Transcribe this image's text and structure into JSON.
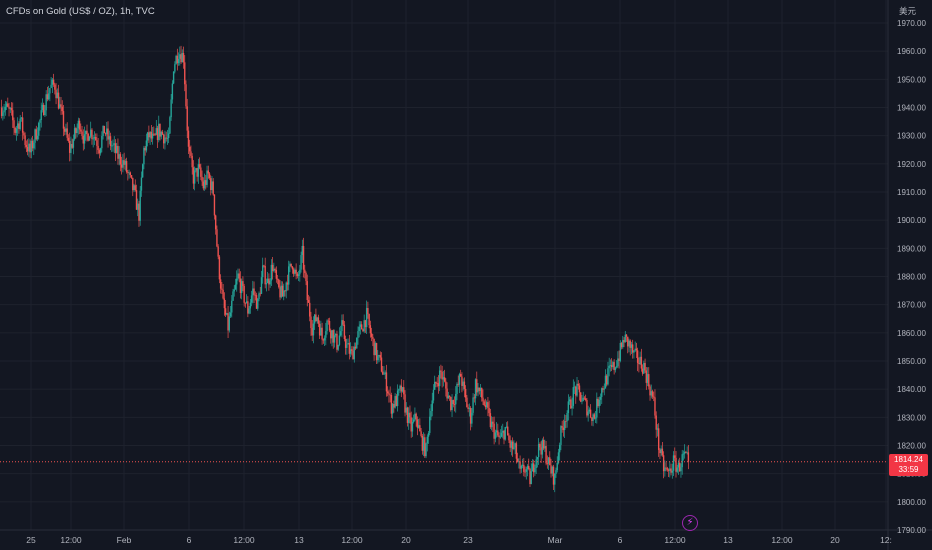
{
  "header": {
    "title": "CFDs on Gold (US$ / OZ), 1h, TVC"
  },
  "price_axis": {
    "currency": "美元"
  },
  "last_price": {
    "value": "1814.24",
    "countdown": "33:59"
  },
  "colors": {
    "background": "#131722",
    "grid": "#1e222d",
    "up": "#26a69a",
    "down": "#ef5350",
    "axis_text": "#b2b5be",
    "price_label": "#f23645"
  },
  "icons": {
    "replay": "lightning-icon"
  },
  "chart_data": {
    "type": "candlestick",
    "title": "CFDs on Gold (US$ / OZ), 1h, TVC",
    "xlabel": "",
    "ylabel": "",
    "ylim": [
      1790,
      1975
    ],
    "y_ticks": [
      1790,
      1800,
      1810,
      1820,
      1830,
      1840,
      1850,
      1860,
      1870,
      1880,
      1890,
      1900,
      1910,
      1920,
      1930,
      1940,
      1950,
      1960,
      1970
    ],
    "y_tick_labels": [
      "1790.00",
      "1800.00",
      "1810.00",
      "1820.00",
      "1830.00",
      "1840.00",
      "1850.00",
      "1860.00",
      "1870.00",
      "1880.00",
      "1890.00",
      "1900.00",
      "1910.00",
      "1920.00",
      "1930.00",
      "1940.00",
      "1950.00",
      "1960.00",
      "1970.00"
    ],
    "x_labels": [
      "25",
      "12:00",
      "Feb",
      "6",
      "12:00",
      "13",
      "12:00",
      "20",
      "23",
      "Mar",
      "6",
      "12:00",
      "13",
      "12:00",
      "20",
      "12:"
    ],
    "grid": true,
    "last_price": 1814.24,
    "close_series": [
      1940,
      1938,
      1932,
      1936,
      1928,
      1924,
      1930,
      1935,
      1942,
      1947,
      1948,
      1940,
      1932,
      1925,
      1930,
      1935,
      1928,
      1932,
      1930,
      1926,
      1932,
      1928,
      1925,
      1922,
      1920,
      1915,
      1910,
      1902,
      1925,
      1930,
      1928,
      1932,
      1930,
      1928,
      1955,
      1960,
      1958,
      1925,
      1915,
      1918,
      1912,
      1916,
      1910,
      1885,
      1870,
      1862,
      1872,
      1880,
      1874,
      1868,
      1875,
      1870,
      1882,
      1878,
      1884,
      1876,
      1873,
      1880,
      1885,
      1878,
      1888,
      1872,
      1862,
      1866,
      1858,
      1864,
      1860,
      1856,
      1862,
      1855,
      1852,
      1858,
      1862,
      1866,
      1858,
      1852,
      1848,
      1842,
      1834,
      1836,
      1840,
      1832,
      1826,
      1830,
      1822,
      1818,
      1835,
      1842,
      1846,
      1840,
      1835,
      1838,
      1845,
      1836,
      1830,
      1842,
      1838,
      1834,
      1828,
      1824,
      1822,
      1826,
      1820,
      1818,
      1810,
      1812,
      1808,
      1815,
      1820,
      1818,
      1812,
      1808,
      1822,
      1830,
      1834,
      1840,
      1838,
      1835,
      1832,
      1830,
      1838,
      1842,
      1846,
      1848,
      1852,
      1858,
      1856,
      1852,
      1850,
      1848,
      1842,
      1835,
      1820,
      1812,
      1810,
      1814,
      1812,
      1816,
      1814.24
    ]
  }
}
